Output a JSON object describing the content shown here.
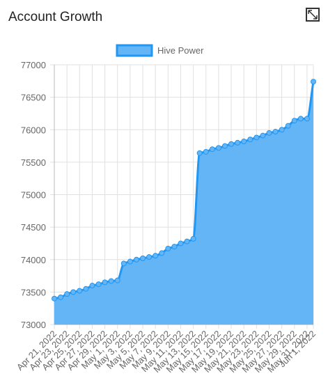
{
  "chart_data": {
    "type": "area",
    "title": "Account Growth",
    "categories": [
      "Apr 21, 2022",
      null,
      "Apr 23, 2022",
      null,
      "Apr 25, 2022",
      null,
      "Apr 27, 2022",
      null,
      "Apr 29, 2022",
      null,
      "May 1, 2022",
      null,
      "May 3, 2022",
      null,
      "May 5, 2022",
      null,
      "May 7, 2022",
      null,
      "May 9, 2022",
      null,
      "May 11, 2022",
      null,
      "May 13, 2022",
      null,
      "May 15, 2022",
      null,
      "May 17, 2022",
      null,
      "May 19, 2022",
      null,
      "May 21, 2022",
      null,
      "May 23, 2022",
      null,
      "May 25, 2022",
      null,
      "May 27, 2022",
      null,
      "May 29, 2022",
      null,
      "May 31, 2022",
      "Jun 1, 2022"
    ],
    "series": [
      {
        "name": "Hive Power",
        "color": "#2196f3",
        "fill": "#64b5f6",
        "values": [
          73400,
          73420,
          73470,
          73500,
          73520,
          73550,
          73600,
          73620,
          73650,
          73670,
          73680,
          73940,
          73970,
          74000,
          74020,
          74040,
          74060,
          74100,
          74170,
          74200,
          74250,
          74280,
          74320,
          75640,
          75660,
          75700,
          75720,
          75750,
          75780,
          75800,
          75820,
          75850,
          75880,
          75910,
          75950,
          75970,
          76000,
          76060,
          76140,
          76170,
          76170,
          76740
        ]
      }
    ],
    "ylim": [
      73000,
      77000
    ],
    "yticks": [
      73000,
      73500,
      74000,
      74500,
      75000,
      75500,
      76000,
      76500,
      77000
    ],
    "grid": true,
    "legend": "top"
  }
}
